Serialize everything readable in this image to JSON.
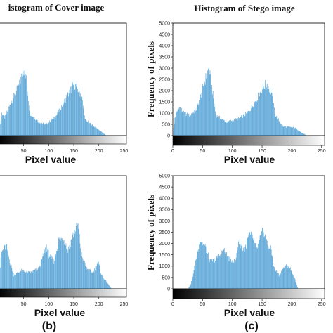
{
  "colors": {
    "bar": "#5aa6d8",
    "axis": "#000000",
    "background": "#ffffff"
  },
  "panel_labels": [
    "(b)",
    "(c)"
  ],
  "chart_data": [
    {
      "type": "bar",
      "title": "istogram of Cover image",
      "ylabel": "",
      "xlabel": "Pixel value",
      "xlim": [
        0,
        255
      ],
      "ylim": [
        0,
        5000
      ],
      "x_ticks": [
        "50",
        "100",
        "150",
        "200",
        "250"
      ],
      "y_ticks": [],
      "grid": false,
      "peaks": [
        [
          0,
          0
        ],
        [
          6,
          1000
        ],
        [
          12,
          800
        ],
        [
          25,
          1500
        ],
        [
          40,
          2200
        ],
        [
          50,
          3000
        ],
        [
          55,
          2500
        ],
        [
          62,
          1000
        ],
        [
          80,
          600
        ],
        [
          95,
          500
        ],
        [
          115,
          900
        ],
        [
          130,
          1500
        ],
        [
          150,
          2300
        ],
        [
          165,
          1800
        ],
        [
          172,
          700
        ],
        [
          200,
          250
        ],
        [
          215,
          0
        ],
        [
          255,
          0
        ]
      ]
    },
    {
      "type": "bar",
      "title": "Histogram of Stego image",
      "ylabel": "Frequency of pixels",
      "xlabel": "Pixel value",
      "xlim": [
        0,
        255
      ],
      "ylim": [
        0,
        5000
      ],
      "x_ticks": [
        "0",
        "50",
        "100",
        "150",
        "200",
        "250"
      ],
      "y_ticks": [
        "0",
        "500",
        "1000",
        "1500",
        "2000",
        "2500",
        "3000",
        "3500",
        "4000",
        "4500",
        "5000"
      ],
      "grid": false,
      "peaks": [
        [
          0,
          0
        ],
        [
          3,
          800
        ],
        [
          10,
          1300
        ],
        [
          18,
          1000
        ],
        [
          28,
          900
        ],
        [
          40,
          1200
        ],
        [
          52,
          2300
        ],
        [
          60,
          3000
        ],
        [
          66,
          2000
        ],
        [
          72,
          900
        ],
        [
          90,
          600
        ],
        [
          110,
          750
        ],
        [
          125,
          1000
        ],
        [
          140,
          1600
        ],
        [
          152,
          2200
        ],
        [
          158,
          2300
        ],
        [
          165,
          1900
        ],
        [
          172,
          900
        ],
        [
          185,
          400
        ],
        [
          205,
          350
        ],
        [
          215,
          150
        ],
        [
          225,
          0
        ],
        [
          255,
          0
        ]
      ]
    },
    {
      "type": "bar",
      "title": "",
      "ylabel": "",
      "xlabel": "Pixel value",
      "xlim": [
        0,
        255
      ],
      "ylim": [
        0,
        5000
      ],
      "x_ticks": [
        "50",
        "100",
        "150",
        "200",
        "250"
      ],
      "y_ticks": [],
      "grid": false,
      "peaks": [
        [
          0,
          0
        ],
        [
          5,
          1600
        ],
        [
          15,
          1900
        ],
        [
          22,
          1200
        ],
        [
          30,
          600
        ],
        [
          45,
          800
        ],
        [
          62,
          700
        ],
        [
          80,
          900
        ],
        [
          95,
          1900
        ],
        [
          100,
          1500
        ],
        [
          110,
          1200
        ],
        [
          120,
          2200
        ],
        [
          130,
          2200
        ],
        [
          138,
          1700
        ],
        [
          150,
          2500
        ],
        [
          158,
          2800
        ],
        [
          165,
          1500
        ],
        [
          175,
          900
        ],
        [
          188,
          700
        ],
        [
          198,
          1200
        ],
        [
          205,
          600
        ],
        [
          215,
          300
        ],
        [
          225,
          0
        ],
        [
          255,
          0
        ]
      ]
    },
    {
      "type": "bar",
      "title": "",
      "ylabel": "Frequency of pixels",
      "xlabel": "Pixel value",
      "xlim": [
        0,
        255
      ],
      "ylim": [
        0,
        5000
      ],
      "x_ticks": [
        "0",
        "50",
        "100",
        "150",
        "200",
        "250"
      ],
      "y_ticks": [
        "0",
        "500",
        "1000",
        "1500",
        "2000",
        "2500",
        "3000",
        "3500",
        "4000",
        "4500",
        "5000"
      ],
      "grid": false,
      "peaks": [
        [
          0,
          0
        ],
        [
          25,
          0
        ],
        [
          30,
          200
        ],
        [
          35,
          800
        ],
        [
          45,
          2200
        ],
        [
          55,
          1800
        ],
        [
          62,
          1200
        ],
        [
          72,
          1300
        ],
        [
          85,
          1700
        ],
        [
          95,
          1300
        ],
        [
          105,
          1200
        ],
        [
          110,
          2100
        ],
        [
          120,
          1700
        ],
        [
          128,
          2400
        ],
        [
          135,
          2200
        ],
        [
          140,
          1700
        ],
        [
          145,
          2100
        ],
        [
          152,
          2600
        ],
        [
          158,
          2000
        ],
        [
          165,
          1700
        ],
        [
          170,
          900
        ],
        [
          178,
          600
        ],
        [
          185,
          900
        ],
        [
          190,
          1000
        ],
        [
          195,
          1000
        ],
        [
          205,
          400
        ],
        [
          210,
          0
        ],
        [
          255,
          0
        ]
      ]
    }
  ]
}
